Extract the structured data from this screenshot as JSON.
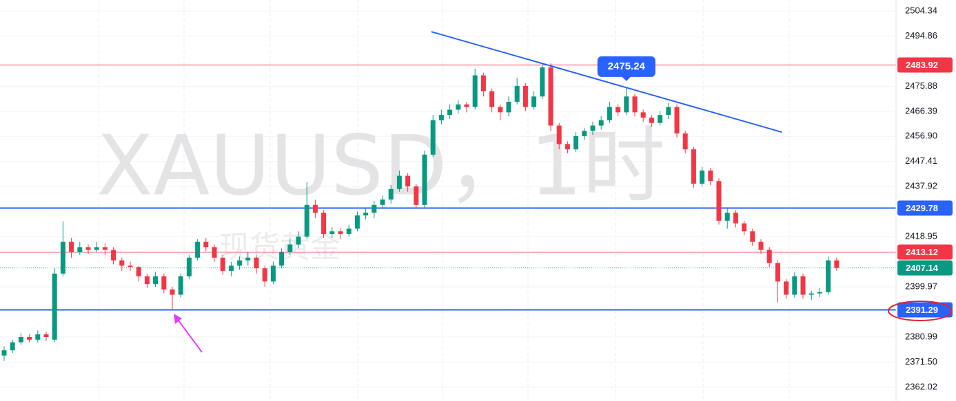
{
  "chart_data": {
    "type": "candlestick",
    "watermark": "XAUUSD，1时",
    "watermark_subtitle": "现货黄金",
    "ylim": [
      2356.8,
      2508.5
    ],
    "yticks": [
      2504.34,
      2494.86,
      2475.88,
      2466.39,
      {
        "value": 2456.9,
        "label": "2456.90"
      },
      2447.41,
      2437.92,
      2418.95,
      2399.97,
      2380.99,
      {
        "value": 2371.5,
        "label": "2371.50"
      },
      2362.02
    ],
    "grid": true,
    "up_color": "#089981",
    "down_color": "#f23645",
    "ohlc": [
      [
        2374,
        2377.5,
        2372,
        2376
      ],
      [
        2376,
        2380,
        2375,
        2379
      ],
      [
        2379,
        2382.5,
        2378,
        2381
      ],
      [
        2381,
        2382,
        2379,
        2380
      ],
      [
        2380,
        2383.5,
        2379,
        2382
      ],
      [
        2382,
        2383,
        2379.5,
        2381
      ],
      [
        2380,
        2407,
        2379,
        2405
      ],
      [
        2405,
        2424.7,
        2404,
        2417
      ],
      [
        2417,
        2418.5,
        2411,
        2413
      ],
      [
        2413,
        2417,
        2412,
        2415
      ],
      [
        2415,
        2416,
        2412.5,
        2414
      ],
      [
        2414,
        2417,
        2413,
        2415
      ],
      [
        2415,
        2416.5,
        2412,
        2414
      ],
      [
        2414,
        2415,
        2408.5,
        2410
      ],
      [
        2410,
        2411,
        2406,
        2408
      ],
      [
        2408,
        2409.5,
        2406,
        2407.5
      ],
      [
        2407.5,
        2408,
        2402,
        2404
      ],
      [
        2404,
        2405,
        2399.5,
        2401
      ],
      [
        2401,
        2405.5,
        2400,
        2404
      ],
      [
        2404,
        2405,
        2397.5,
        2399
      ],
      [
        2399,
        2400,
        2391.3,
        2397
      ],
      [
        2397,
        2405,
        2396,
        2404
      ],
      [
        2404,
        2412,
        2403,
        2411
      ],
      [
        2411,
        2418,
        2410,
        2417
      ],
      [
        2417,
        2418.5,
        2413.5,
        2415
      ],
      [
        2415,
        2416,
        2409.5,
        2411
      ],
      [
        2411,
        2412,
        2404.5,
        2406
      ],
      [
        2406,
        2409.5,
        2404,
        2408
      ],
      [
        2408,
        2411.5,
        2406.5,
        2410
      ],
      [
        2410,
        2413,
        2408,
        2411
      ],
      [
        2411,
        2412,
        2405,
        2407
      ],
      [
        2407,
        2408,
        2400,
        2402
      ],
      [
        2402,
        2409.5,
        2401,
        2408
      ],
      [
        2408,
        2414.5,
        2407,
        2413
      ],
      [
        2413,
        2418,
        2412,
        2416
      ],
      [
        2416,
        2421,
        2414.5,
        2419
      ],
      [
        2419,
        2439.5,
        2418,
        2431
      ],
      [
        2431,
        2433,
        2426,
        2428
      ],
      [
        2428,
        2429,
        2418.5,
        2420
      ],
      [
        2420,
        2422.5,
        2418.5,
        2421
      ],
      [
        2421,
        2422,
        2418,
        2420
      ],
      [
        2420,
        2423.5,
        2419,
        2422
      ],
      [
        2422,
        2428.5,
        2421,
        2427
      ],
      [
        2427,
        2430,
        2425.5,
        2428
      ],
      [
        2428,
        2432.5,
        2426,
        2431
      ],
      [
        2431,
        2434.5,
        2429.5,
        2433
      ],
      [
        2433,
        2438.5,
        2431.5,
        2437
      ],
      [
        2437,
        2444,
        2436,
        2442
      ],
      [
        2442,
        2443,
        2436,
        2438
      ],
      [
        2438,
        2439,
        2429.5,
        2431
      ],
      [
        2431,
        2451.5,
        2430,
        2450
      ],
      [
        2450,
        2465,
        2449,
        2463
      ],
      [
        2463,
        2467,
        2461.5,
        2465
      ],
      [
        2465,
        2469,
        2463.5,
        2467
      ],
      [
        2467,
        2470.5,
        2465.5,
        2469
      ],
      [
        2469,
        2470,
        2466,
        2468
      ],
      [
        2468,
        2482.5,
        2467,
        2480
      ],
      [
        2480,
        2481,
        2472,
        2474
      ],
      [
        2474,
        2475,
        2466,
        2468
      ],
      [
        2468,
        2469,
        2463,
        2466
      ],
      [
        2466,
        2472,
        2464.5,
        2470
      ],
      [
        2470,
        2479,
        2469,
        2476
      ],
      [
        2476,
        2477,
        2466.5,
        2468
      ],
      [
        2468,
        2474,
        2467,
        2472
      ],
      [
        2472,
        2484,
        2471,
        2483
      ],
      [
        2483,
        2484.5,
        2459,
        2461
      ],
      [
        2461,
        2462,
        2452,
        2454
      ],
      [
        2454,
        2455,
        2450.5,
        2452
      ],
      [
        2452,
        2458.5,
        2451,
        2457
      ],
      [
        2457,
        2460,
        2455.5,
        2459
      ],
      [
        2459,
        2462.5,
        2457.5,
        2461
      ],
      [
        2461,
        2464.5,
        2459.5,
        2463
      ],
      [
        2463,
        2470,
        2462,
        2468
      ],
      [
        2468,
        2469,
        2464.5,
        2466
      ],
      [
        2466,
        2475.24,
        2465,
        2472
      ],
      [
        2472,
        2473,
        2464.5,
        2466
      ],
      [
        2466,
        2467,
        2462.5,
        2464
      ],
      [
        2464,
        2465,
        2460.5,
        2462
      ],
      [
        2462,
        2466.5,
        2461,
        2465
      ],
      [
        2465,
        2469.5,
        2463.5,
        2468
      ],
      [
        2468,
        2469,
        2456.5,
        2458
      ],
      [
        2458,
        2459,
        2450.5,
        2452
      ],
      [
        2452,
        2453,
        2437.5,
        2439
      ],
      [
        2439,
        2445.5,
        2438,
        2444
      ],
      [
        2444,
        2445,
        2438.5,
        2440
      ],
      [
        2440,
        2441,
        2423.5,
        2425
      ],
      [
        2425,
        2429.5,
        2422,
        2428
      ],
      [
        2428,
        2429,
        2422.5,
        2424
      ],
      [
        2424,
        2425,
        2419.5,
        2421
      ],
      [
        2421,
        2422,
        2415.5,
        2417
      ],
      [
        2417,
        2418,
        2412.5,
        2414
      ],
      [
        2414,
        2415,
        2407.5,
        2409
      ],
      [
        2409,
        2410,
        2394,
        2402
      ],
      [
        2402,
        2403,
        2395.5,
        2397
      ],
      [
        2397,
        2405.5,
        2396,
        2404
      ],
      [
        2404,
        2405,
        2395.5,
        2397
      ],
      [
        2397,
        2398.5,
        2395,
        2397.5
      ],
      [
        2397.5,
        2399.5,
        2396,
        2398
      ],
      [
        2398,
        2411.5,
        2397,
        2410
      ],
      [
        2410,
        2411,
        2406,
        2407.14
      ]
    ],
    "levels": [
      {
        "value": 2483.92,
        "color": "#f23645",
        "width": 1
      },
      {
        "value": 2429.78,
        "color": "#2962ff",
        "width": 2
      },
      {
        "value": 2413.12,
        "color": "#f23645",
        "width": 1
      },
      {
        "value": 2391.29,
        "color": "#2962ff",
        "width": 2
      }
    ],
    "last_price": {
      "value": 2407.14,
      "color": "#089981"
    },
    "high_callout": {
      "value": 2475.24,
      "index": 74,
      "color": "#2962ff"
    },
    "trendline": {
      "from": [
        50.8,
        2496.5
      ],
      "to": [
        92.5,
        2458.5
      ],
      "color": "#2962ff"
    }
  }
}
